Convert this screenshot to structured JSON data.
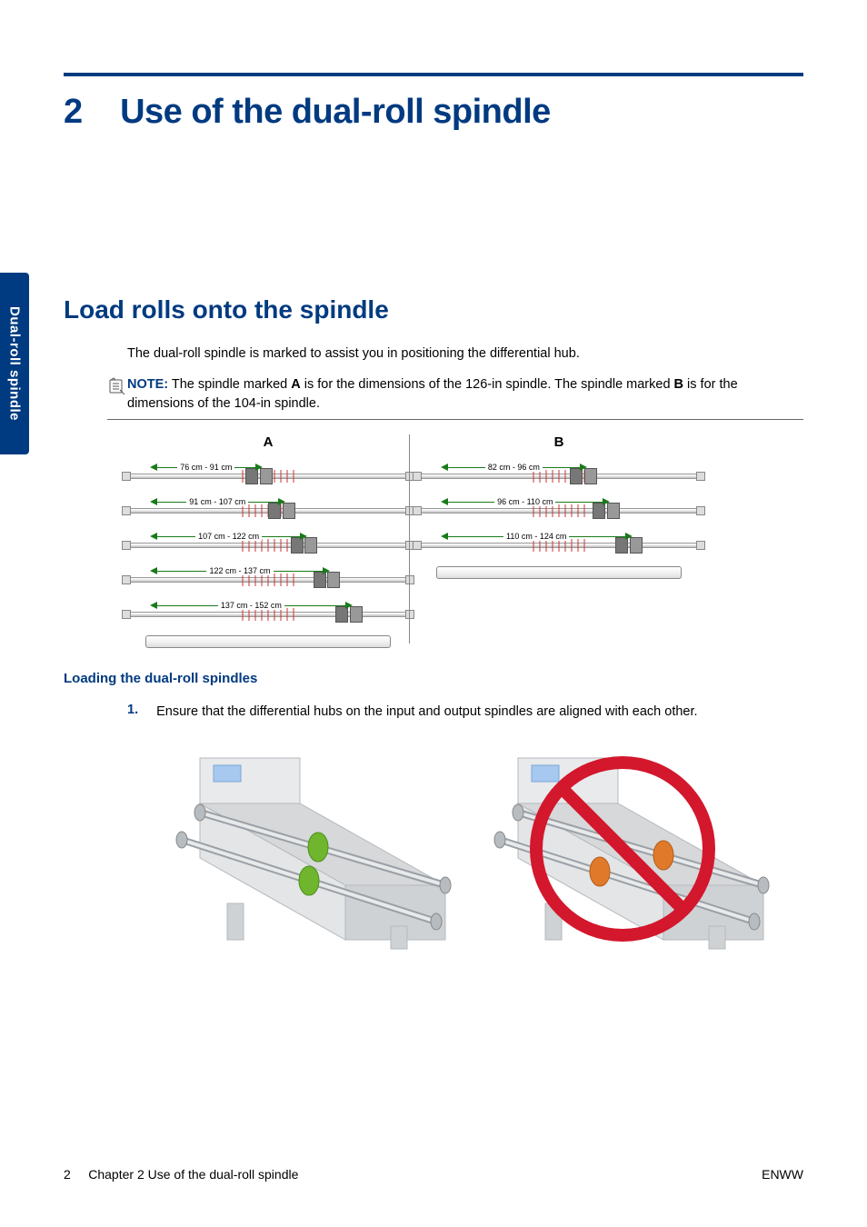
{
  "colors": {
    "brand_blue": "#003a80",
    "rule_gray": "#666666",
    "arrow_green": "#1a7a1a",
    "tick_red": "#c33333",
    "spindle_border": "#999999",
    "hub_fill": "#777777",
    "prohibit_red": "#d3172c",
    "printer_gray": "#d6d8da",
    "printer_dark": "#9aa0a6",
    "hub_green": "#6fb52e",
    "hub_orange": "#e07a2a"
  },
  "side_tab": "Dual-roll spindle",
  "chapter_number": "2",
  "chapter_title": "Use of the dual-roll spindle",
  "section_title": "Load rolls onto the spindle",
  "intro": "The dual-roll spindle is marked to assist you in positioning the differential hub.",
  "note": {
    "label": "NOTE:",
    "text_before_A": "The spindle marked ",
    "A": "A",
    "text_mid": " is for the dimensions of the 126-in spindle. The spindle marked ",
    "B": "B",
    "text_after_B": " is for the dimensions of the 104-in spindle."
  },
  "diagram": {
    "colA_label": "A",
    "colB_label": "B",
    "A_rows": [
      {
        "range": "76 cm - 91 cm",
        "hub_pct": 42,
        "arrow_w": 40
      },
      {
        "range": "91 cm - 107 cm",
        "hub_pct": 50,
        "arrow_w": 48
      },
      {
        "range": "107 cm - 122 cm",
        "hub_pct": 58,
        "arrow_w": 56
      },
      {
        "range": "122 cm - 137 cm",
        "hub_pct": 66,
        "arrow_w": 64
      },
      {
        "range": "137 cm - 152 cm",
        "hub_pct": 74,
        "arrow_w": 72
      }
    ],
    "B_rows": [
      {
        "range": "82 cm - 96 cm",
        "hub_pct": 54,
        "arrow_w": 52
      },
      {
        "range": "96 cm - 110 cm",
        "hub_pct": 62,
        "arrow_w": 60
      },
      {
        "range": "110 cm - 124 cm",
        "hub_pct": 70,
        "arrow_w": 68
      }
    ]
  },
  "subheading": "Loading the dual-roll spindles",
  "step1": {
    "n": "1.",
    "text": "Ensure that the differential hubs on the input and output spindles are aligned with each other."
  },
  "footer": {
    "page": "2",
    "chapter_ref": "Chapter 2   Use of the dual-roll spindle",
    "locale": "ENWW"
  }
}
